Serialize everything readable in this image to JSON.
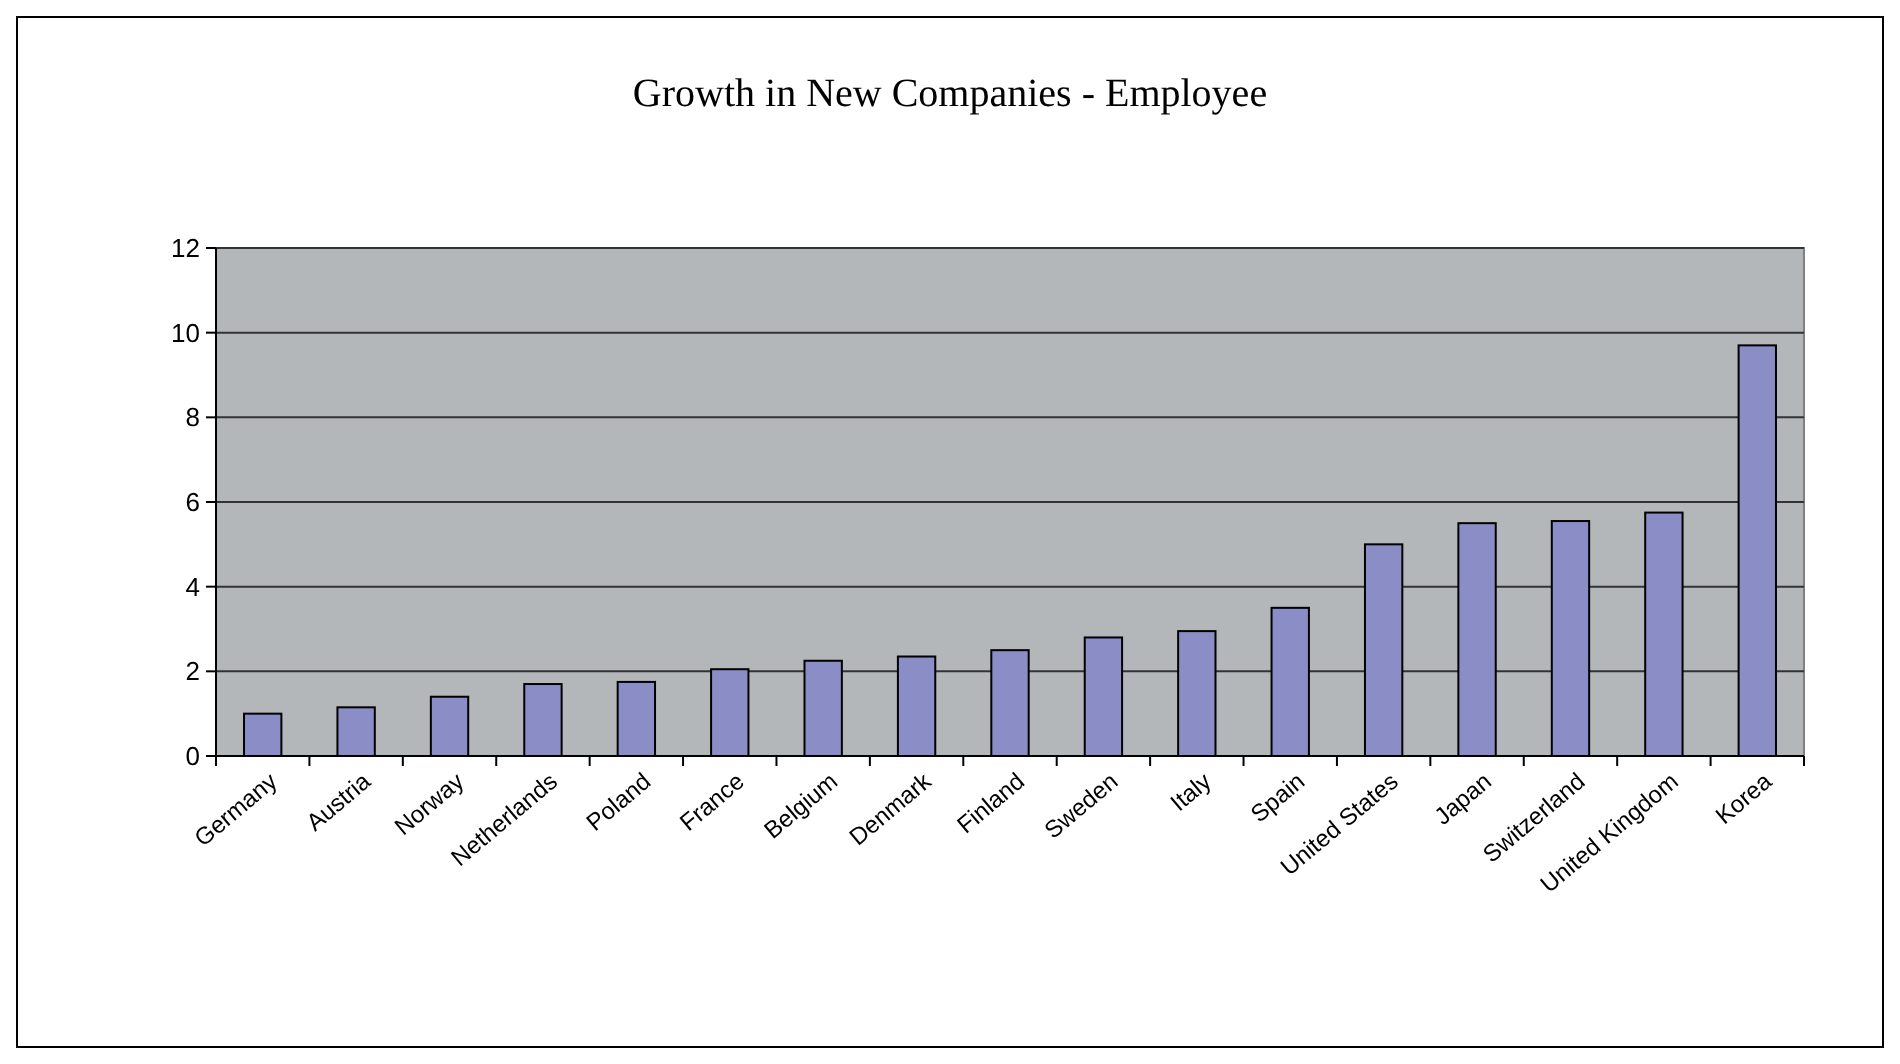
{
  "chart_data": {
    "type": "bar",
    "title": "Growth in New Companies - Employee",
    "categories": [
      "Germany",
      "Austria",
      "Norway",
      "Netherlands",
      "Poland",
      "France",
      "Belgium",
      "Denmark",
      "Finland",
      "Sweden",
      "Italy",
      "Spain",
      "United States",
      "Japan",
      "Switzerland",
      "United Kingdom",
      "Korea"
    ],
    "values": [
      1.0,
      1.15,
      1.4,
      1.7,
      1.75,
      2.05,
      2.25,
      2.35,
      2.5,
      2.8,
      2.95,
      3.5,
      5.0,
      5.5,
      5.55,
      5.75,
      9.7
    ],
    "color": "#8b8dc7",
    "ylim": [
      0,
      12
    ],
    "yticks": [
      0,
      2,
      4,
      6,
      8,
      10,
      12
    ],
    "grid": "y"
  }
}
